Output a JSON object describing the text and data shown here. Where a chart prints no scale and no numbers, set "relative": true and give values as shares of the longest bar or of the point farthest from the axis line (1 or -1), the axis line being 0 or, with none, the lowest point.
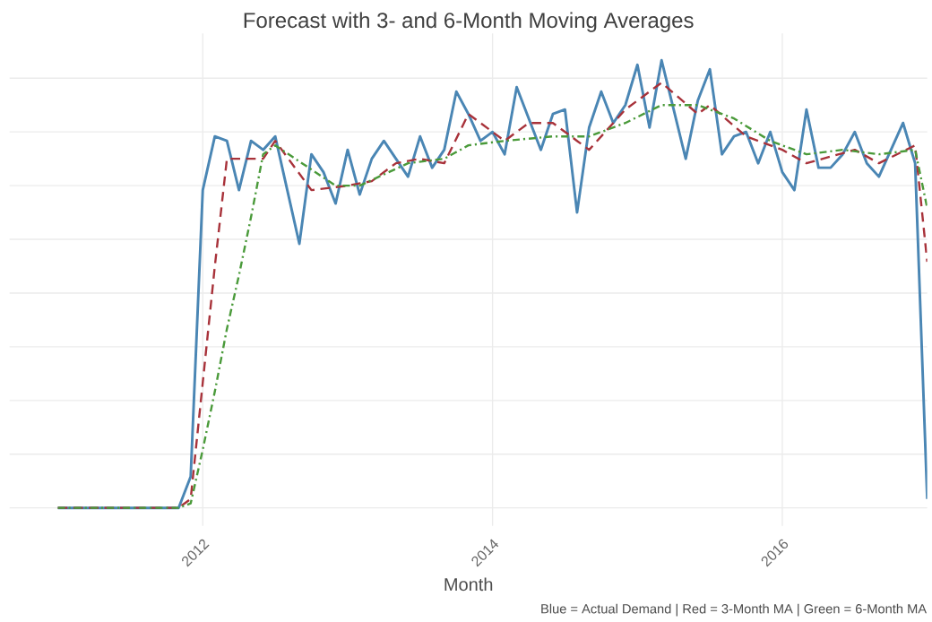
{
  "chart_data": {
    "type": "line",
    "title": "Forecast with 3- and 6-Month Moving Averages",
    "xlabel": "Month",
    "annotations": [
      "Blue = Actual Demand | Red = 3-Month MA | Green = 6-Month MA"
    ],
    "relative": true,
    "grid": true,
    "marker": "none",
    "xlim": [
      "2010-09",
      "2017-01"
    ],
    "xticks": [
      {
        "value": "2012-01",
        "label": "2012"
      },
      {
        "value": "2014-01",
        "label": "2014"
      },
      {
        "value": "2016-01",
        "label": "2016"
      }
    ],
    "series": [
      {
        "color": "#4a86b4",
        "line_style": "solid",
        "x": [
          "2011-01",
          "2011-11",
          "2011-12",
          "2012-01",
          "2012-02",
          "2012-03",
          "2012-04",
          "2012-05",
          "2012-06",
          "2012-07",
          "2012-08",
          "2012-09",
          "2012-10",
          "2012-11",
          "2012-12",
          "2013-01",
          "2013-02",
          "2013-03",
          "2013-04",
          "2013-05",
          "2013-06",
          "2013-07",
          "2013-08",
          "2013-09",
          "2013-10",
          "2013-11",
          "2013-12",
          "2014-01",
          "2014-02",
          "2014-03",
          "2014-04",
          "2014-05",
          "2014-06",
          "2014-07",
          "2014-08",
          "2014-09",
          "2014-10",
          "2014-11",
          "2014-12",
          "2015-01",
          "2015-02",
          "2015-03",
          "2015-04",
          "2015-05",
          "2015-06",
          "2015-07",
          "2015-08",
          "2015-09",
          "2015-10",
          "2015-11",
          "2015-12",
          "2016-01",
          "2016-02",
          "2016-03",
          "2016-04",
          "2016-05",
          "2016-06",
          "2016-07",
          "2016-08",
          "2016-09",
          "2016-10",
          "2016-11",
          "2016-12",
          "2017-01"
        ],
        "values": [
          0,
          0,
          0.07,
          0.71,
          0.83,
          0.82,
          0.71,
          0.82,
          0.8,
          0.83,
          0.71,
          0.59,
          0.79,
          0.75,
          0.68,
          0.8,
          0.7,
          0.78,
          0.82,
          0.78,
          0.74,
          0.83,
          0.76,
          0.8,
          0.93,
          0.88,
          0.82,
          0.84,
          0.79,
          0.94,
          0.87,
          0.8,
          0.88,
          0.89,
          0.66,
          0.85,
          0.93,
          0.86,
          0.9,
          0.99,
          0.85,
          1.0,
          0.89,
          0.78,
          0.91,
          0.98,
          0.79,
          0.83,
          0.84,
          0.77,
          0.84,
          0.75,
          0.71,
          0.89,
          0.76,
          0.76,
          0.79,
          0.84,
          0.77,
          0.74,
          0.8,
          0.86,
          0.77,
          0.02
        ]
      },
      {
        "color": "#a8323a",
        "line_style": "dashed",
        "x": [
          "2011-01",
          "2011-11",
          "2011-12",
          "2012-01",
          "2012-02",
          "2012-03",
          "2012-06",
          "2012-07",
          "2012-10",
          "2013-01",
          "2013-03",
          "2013-05",
          "2013-07",
          "2013-09",
          "2013-11",
          "2014-02",
          "2014-04",
          "2014-06",
          "2014-08",
          "2014-09",
          "2014-12",
          "2015-01",
          "2015-03",
          "2015-06",
          "2015-07",
          "2015-10",
          "2016-01",
          "2016-03",
          "2016-07",
          "2016-09",
          "2016-12",
          "2017-01"
        ],
        "values": [
          0,
          0,
          0.02,
          0.28,
          0.54,
          0.78,
          0.78,
          0.82,
          0.71,
          0.72,
          0.73,
          0.77,
          0.78,
          0.77,
          0.88,
          0.82,
          0.86,
          0.86,
          0.82,
          0.8,
          0.89,
          0.91,
          0.95,
          0.88,
          0.9,
          0.83,
          0.8,
          0.77,
          0.8,
          0.77,
          0.81,
          0.55
        ]
      },
      {
        "color": "#4a9a3a",
        "line_style": "dashdot",
        "x": [
          "2011-01",
          "2011-11",
          "2011-12",
          "2012-01",
          "2012-02",
          "2012-03",
          "2012-04",
          "2012-05",
          "2012-06",
          "2012-07",
          "2012-12",
          "2013-02",
          "2013-06",
          "2013-09",
          "2013-11",
          "2014-02",
          "2014-06",
          "2014-09",
          "2014-12",
          "2015-03",
          "2015-06",
          "2015-09",
          "2015-12",
          "2016-03",
          "2016-06",
          "2016-09",
          "2016-12",
          "2017-01"
        ],
        "values": [
          0,
          0,
          0.01,
          0.13,
          0.26,
          0.4,
          0.52,
          0.65,
          0.79,
          0.81,
          0.72,
          0.72,
          0.77,
          0.78,
          0.81,
          0.82,
          0.83,
          0.83,
          0.86,
          0.9,
          0.9,
          0.87,
          0.82,
          0.79,
          0.8,
          0.79,
          0.8,
          0.67
        ]
      }
    ]
  }
}
